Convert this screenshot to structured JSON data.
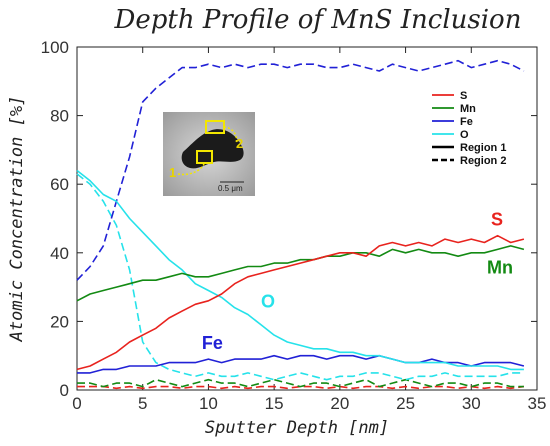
{
  "chart_data": {
    "type": "line",
    "title": "Depth Profile of MnS Inclusion",
    "xlabel": "Sputter Depth [nm]",
    "ylabel": "Atomic Concentration [%]",
    "xlim": [
      0,
      35
    ],
    "ylim": [
      0,
      100
    ],
    "xticks": [
      "0",
      "5",
      "10",
      "15",
      "20",
      "25",
      "30",
      "35"
    ],
    "yticks": [
      "0",
      "20",
      "40",
      "60",
      "80",
      "100"
    ],
    "grid": false,
    "legend_position": "top-right",
    "legend": [
      {
        "label": "S",
        "color": "#e8231e",
        "style": "solid"
      },
      {
        "label": "Mn",
        "color": "#138a13",
        "style": "solid"
      },
      {
        "label": "Fe",
        "color": "#2121d6",
        "style": "solid"
      },
      {
        "label": "O",
        "color": "#26e2ea",
        "style": "solid"
      },
      {
        "label": "Region 1",
        "color": "#000000",
        "style": "solid"
      },
      {
        "label": "Region 2",
        "color": "#000000",
        "style": "dashed"
      }
    ],
    "annotations": [
      {
        "text": "S",
        "x": 31.5,
        "y": 48,
        "color": "#e8231e"
      },
      {
        "text": "Mn",
        "x": 31.2,
        "y": 34,
        "color": "#138a13"
      },
      {
        "text": "O",
        "x": 14,
        "y": 24,
        "color": "#26e2ea"
      },
      {
        "text": "Fe",
        "x": 9.5,
        "y": 12,
        "color": "#2121d6"
      }
    ],
    "inset": {
      "scale_label": "0.5 μm",
      "region_labels": [
        "1",
        "2"
      ]
    },
    "series": [
      {
        "name": "S",
        "region": "Region 1",
        "color": "#e8231e",
        "x": [
          0,
          1,
          2,
          3,
          4,
          5,
          6,
          7,
          8,
          9,
          10,
          11,
          12,
          13,
          14,
          15,
          16,
          17,
          18,
          19,
          20,
          21,
          22,
          23,
          24,
          25,
          26,
          27,
          28,
          29,
          30,
          31,
          32,
          33,
          34
        ],
        "values": [
          6,
          7,
          9,
          11,
          14,
          16,
          18,
          21,
          23,
          25,
          26,
          28,
          31,
          33,
          34,
          35,
          36,
          37,
          38,
          39,
          40,
          40,
          39,
          42,
          43,
          42,
          43,
          42,
          44,
          43,
          44,
          43,
          45,
          43,
          44
        ]
      },
      {
        "name": "Mn",
        "region": "Region 1",
        "color": "#138a13",
        "x": [
          0,
          1,
          2,
          3,
          4,
          5,
          6,
          7,
          8,
          9,
          10,
          11,
          12,
          13,
          14,
          15,
          16,
          17,
          18,
          19,
          20,
          21,
          22,
          23,
          24,
          25,
          26,
          27,
          28,
          29,
          30,
          31,
          32,
          33,
          34
        ],
        "values": [
          26,
          28,
          29,
          30,
          31,
          32,
          32,
          33,
          34,
          33,
          33,
          34,
          35,
          36,
          36,
          37,
          37,
          38,
          38,
          39,
          39,
          40,
          40,
          39,
          41,
          40,
          41,
          40,
          40,
          39,
          40,
          40,
          41,
          42,
          41
        ]
      },
      {
        "name": "Fe",
        "region": "Region 1",
        "color": "#2121d6",
        "x": [
          0,
          1,
          2,
          3,
          4,
          5,
          6,
          7,
          8,
          9,
          10,
          11,
          12,
          13,
          14,
          15,
          16,
          17,
          18,
          19,
          20,
          21,
          22,
          23,
          24,
          25,
          26,
          27,
          28,
          29,
          30,
          31,
          32,
          33,
          34
        ],
        "values": [
          5,
          5,
          6,
          6,
          7,
          7,
          7,
          8,
          8,
          8,
          9,
          8,
          9,
          9,
          9,
          10,
          9,
          10,
          10,
          9,
          10,
          10,
          9,
          10,
          9,
          8,
          8,
          9,
          8,
          8,
          7,
          8,
          8,
          8,
          7
        ]
      },
      {
        "name": "O",
        "region": "Region 1",
        "color": "#26e2ea",
        "x": [
          0,
          1,
          2,
          3,
          4,
          5,
          6,
          7,
          8,
          9,
          10,
          11,
          12,
          13,
          14,
          15,
          16,
          17,
          18,
          19,
          20,
          21,
          22,
          23,
          24,
          25,
          26,
          27,
          28,
          29,
          30,
          31,
          32,
          33,
          34
        ],
        "values": [
          64,
          61,
          57,
          55,
          50,
          46,
          42,
          38,
          35,
          31,
          29,
          27,
          24,
          22,
          19,
          16,
          14,
          13,
          12,
          12,
          11,
          11,
          10,
          10,
          9,
          8,
          8,
          8,
          8,
          7,
          7,
          7,
          7,
          6,
          6
        ]
      },
      {
        "name": "S",
        "region": "Region 2",
        "color": "#e8231e",
        "x": [
          0,
          1,
          2,
          3,
          4,
          5,
          6,
          7,
          8,
          9,
          10,
          11,
          12,
          13,
          14,
          15,
          16,
          17,
          18,
          19,
          20,
          21,
          22,
          23,
          24,
          25,
          26,
          27,
          28,
          29,
          30,
          31,
          32,
          33,
          34
        ],
        "values": [
          1,
          1,
          1,
          0.5,
          1,
          0.5,
          1,
          1,
          0.5,
          1,
          1,
          0.5,
          1,
          0.5,
          1,
          1,
          0.5,
          1,
          1,
          0.5,
          1,
          0.5,
          1,
          1,
          0.5,
          1,
          0.5,
          1,
          1,
          0.5,
          1,
          0.5,
          1,
          0.5,
          1
        ]
      },
      {
        "name": "Mn",
        "region": "Region 2",
        "color": "#138a13",
        "x": [
          0,
          1,
          2,
          3,
          4,
          5,
          6,
          7,
          8,
          9,
          10,
          11,
          12,
          13,
          14,
          15,
          16,
          17,
          18,
          19,
          20,
          21,
          22,
          23,
          24,
          25,
          26,
          27,
          28,
          29,
          30,
          31,
          32,
          33,
          34
        ],
        "values": [
          2,
          2,
          1,
          2,
          2,
          1,
          3,
          2,
          1,
          2,
          3,
          2,
          2,
          1,
          2,
          3,
          2,
          1,
          2,
          2,
          1,
          2,
          3,
          1,
          2,
          3,
          2,
          1,
          2,
          2,
          1,
          2,
          2,
          1,
          1
        ]
      },
      {
        "name": "Fe",
        "region": "Region 2",
        "color": "#2121d6",
        "x": [
          0,
          1,
          2,
          3,
          4,
          5,
          6,
          7,
          8,
          9,
          10,
          11,
          12,
          13,
          14,
          15,
          16,
          17,
          18,
          19,
          20,
          21,
          22,
          23,
          24,
          25,
          26,
          27,
          28,
          29,
          30,
          31,
          32,
          33,
          34
        ],
        "values": [
          32,
          36,
          42,
          55,
          68,
          84,
          88,
          91,
          94,
          94,
          95,
          94,
          95,
          94,
          95,
          95,
          94,
          95,
          95,
          94,
          94,
          95,
          94,
          93,
          95,
          94,
          93,
          94,
          95,
          96,
          94,
          95,
          96,
          95,
          93
        ]
      },
      {
        "name": "O",
        "region": "Region 2",
        "color": "#26e2ea",
        "x": [
          0,
          1,
          2,
          3,
          4,
          5,
          6,
          7,
          8,
          9,
          10,
          11,
          12,
          13,
          14,
          15,
          16,
          17,
          18,
          19,
          20,
          21,
          22,
          23,
          24,
          25,
          26,
          27,
          28,
          29,
          30,
          31,
          32,
          33,
          34
        ],
        "values": [
          63,
          60,
          55,
          48,
          35,
          14,
          8,
          6,
          5,
          4,
          5,
          4,
          4,
          5,
          4,
          3,
          4,
          5,
          4,
          3,
          4,
          4,
          5,
          5,
          4,
          3,
          4,
          4,
          5,
          4,
          4,
          4,
          4,
          5,
          5
        ]
      }
    ]
  }
}
